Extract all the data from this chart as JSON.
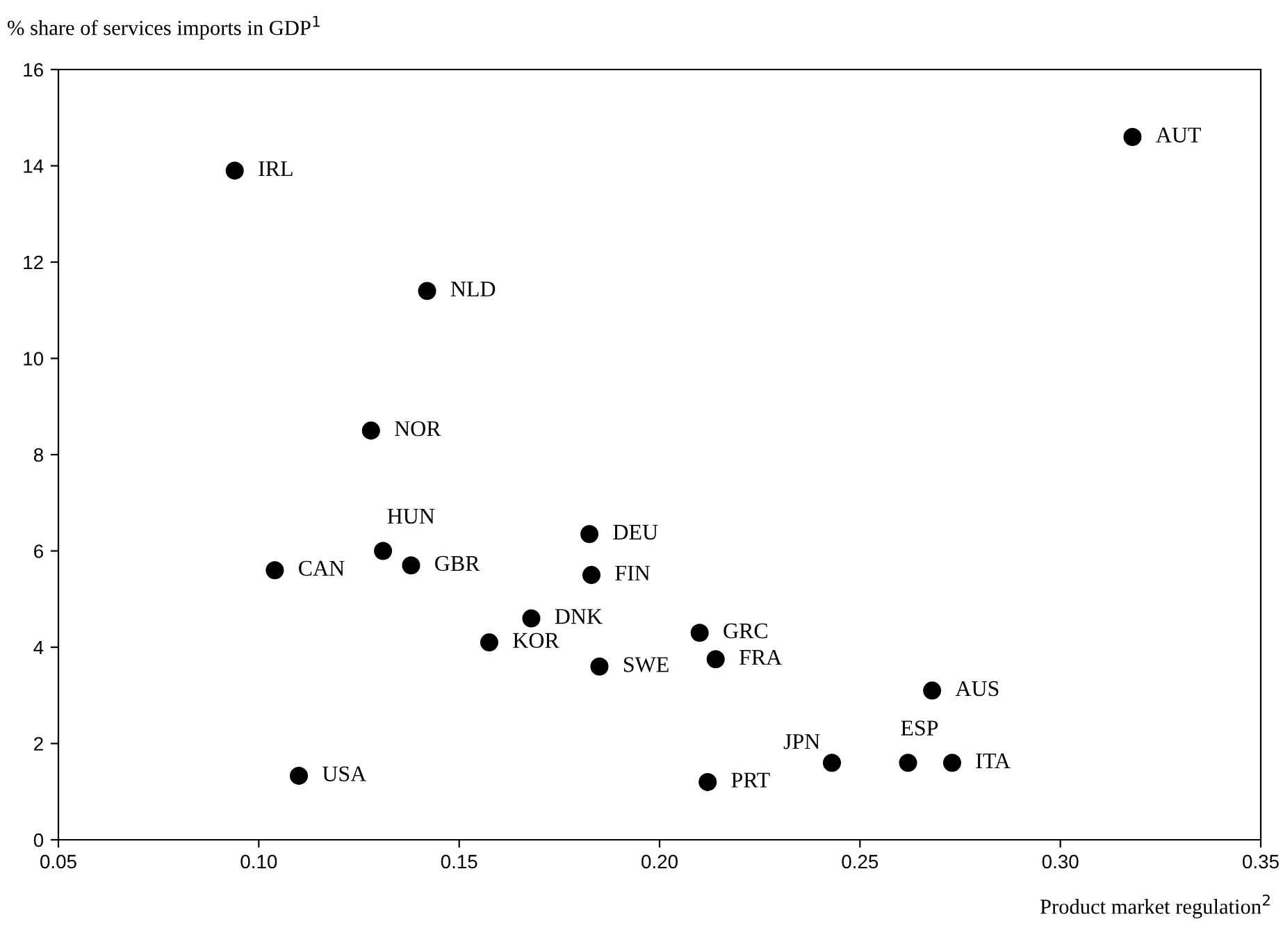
{
  "chart_data": {
    "type": "scatter",
    "ylabel": "% share of services imports in GDP$^{1}$",
    "xlabel": "Product market regulation$^{2}$",
    "x": [
      0.094,
      0.318,
      0.142,
      0.128,
      0.131,
      0.104,
      0.138,
      0.1825,
      0.183,
      0.168,
      0.1575,
      0.185,
      0.21,
      0.214,
      0.268,
      0.243,
      0.262,
      0.273,
      0.11,
      0.212
    ],
    "series": [
      {
        "color": "#000000",
        "values": [
          13.9,
          14.6,
          11.4,
          8.5,
          6.0,
          5.6,
          5.7,
          6.35,
          5.5,
          4.6,
          4.1,
          3.6,
          4.3,
          3.75,
          3.1,
          1.6,
          1.6,
          1.6,
          1.33,
          1.2
        ]
      }
    ],
    "annotations": [
      {
        "text": "IRL",
        "x": 0.094,
        "y": 13.9
      },
      {
        "text": "AUT",
        "x": 0.318,
        "y": 14.6
      },
      {
        "text": "NLD",
        "x": 0.142,
        "y": 11.4
      },
      {
        "text": "NOR",
        "x": 0.128,
        "y": 8.5
      },
      {
        "text": "HUN",
        "x": 0.131,
        "y": 6.0
      },
      {
        "text": "CAN",
        "x": 0.104,
        "y": 5.6
      },
      {
        "text": "GBR",
        "x": 0.138,
        "y": 5.7
      },
      {
        "text": "DEU",
        "x": 0.1825,
        "y": 6.35
      },
      {
        "text": "FIN",
        "x": 0.183,
        "y": 5.5
      },
      {
        "text": "DNK",
        "x": 0.168,
        "y": 4.6
      },
      {
        "text": "KOR",
        "x": 0.1575,
        "y": 4.1
      },
      {
        "text": "SWE",
        "x": 0.185,
        "y": 3.6
      },
      {
        "text": "GRC",
        "x": 0.21,
        "y": 4.3
      },
      {
        "text": "FRA",
        "x": 0.214,
        "y": 3.75
      },
      {
        "text": "AUS",
        "x": 0.268,
        "y": 3.1
      },
      {
        "text": "JPN",
        "x": 0.243,
        "y": 1.6
      },
      {
        "text": "ESP",
        "x": 0.262,
        "y": 1.6
      },
      {
        "text": "ITA",
        "x": 0.273,
        "y": 1.6
      },
      {
        "text": "USA",
        "x": 0.11,
        "y": 1.33
      },
      {
        "text": "PRT",
        "x": 0.212,
        "y": 1.2
      }
    ],
    "xlim": [
      0.05,
      0.35
    ],
    "ylim": [
      0,
      16
    ],
    "xticks": [
      {
        "value": 0.05,
        "label": "0.05"
      },
      {
        "value": 0.1,
        "label": "0.10"
      },
      {
        "value": 0.15,
        "label": "0.15"
      },
      {
        "value": 0.2,
        "label": "0.20"
      },
      {
        "value": 0.25,
        "label": "0.25"
      },
      {
        "value": 0.3,
        "label": "0.30"
      },
      {
        "value": 0.35,
        "label": "0.35"
      }
    ],
    "yticks": [
      0,
      2,
      4,
      6,
      8,
      10,
      12,
      14,
      16
    ],
    "marker": "circle",
    "grid": false
  }
}
